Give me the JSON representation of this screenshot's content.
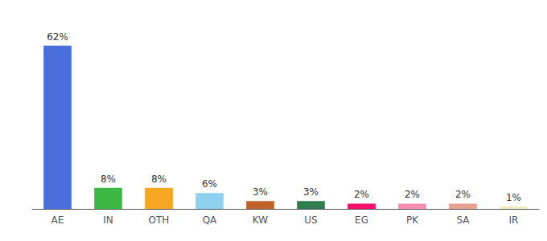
{
  "chart_data": {
    "type": "bar",
    "categories": [
      "AE",
      "IN",
      "OTH",
      "QA",
      "KW",
      "US",
      "EG",
      "PK",
      "SA",
      "IR"
    ],
    "values": [
      62,
      8,
      8,
      6,
      3,
      3,
      2,
      2,
      2,
      1
    ],
    "value_labels": [
      "62%",
      "8%",
      "8%",
      "6%",
      "3%",
      "3%",
      "2%",
      "2%",
      "2%",
      "1%"
    ],
    "colors": [
      "#4a6fdc",
      "#3cb844",
      "#f5a623",
      "#8ed0f0",
      "#c0622a",
      "#2e7d4f",
      "#f0106a",
      "#f48fb1",
      "#e8a090",
      "#f0eec0"
    ],
    "ylim": [
      0,
      72
    ],
    "data_labels": true,
    "tick_labels": "x",
    "grid": false
  }
}
